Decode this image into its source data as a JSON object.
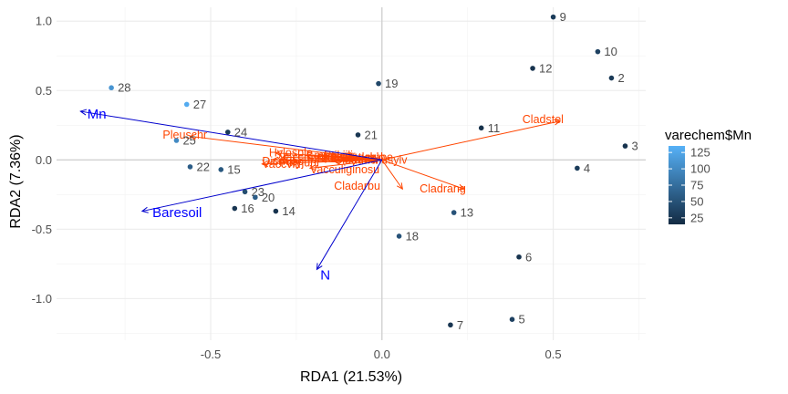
{
  "chart_data": {
    "type": "scatter",
    "xlabel": "RDA1 (21.53%)",
    "ylabel": "RDA2 (7.36%)",
    "xlim": [
      -0.95,
      0.77
    ],
    "ylim": [
      -1.3,
      1.1
    ],
    "xticks": [
      -0.5,
      0.0,
      0.5
    ],
    "xtick_labels": [
      "-0.5",
      "0.0",
      "0.5"
    ],
    "yticks": [
      -1.0,
      -0.5,
      0.0,
      0.5,
      1.0
    ],
    "ytick_labels": [
      "-1.0",
      "-0.5",
      "0.0",
      "0.5",
      "1.0"
    ],
    "grid": true,
    "legend": {
      "title": "varechem$Mn",
      "position": "right",
      "breaks": [
        25,
        50,
        75,
        100,
        125
      ],
      "break_labels": [
        "25",
        "50",
        "75",
        "100",
        "125"
      ],
      "range": [
        15,
        135
      ],
      "low_color": "#132b43",
      "high_color": "#56b1f7"
    },
    "sites": [
      {
        "label": "9",
        "x": 0.5,
        "y": 1.03,
        "mn": 30
      },
      {
        "label": "10",
        "x": 0.63,
        "y": 0.78,
        "mn": 35
      },
      {
        "label": "12",
        "x": 0.44,
        "y": 0.66,
        "mn": 22
      },
      {
        "label": "2",
        "x": 0.67,
        "y": 0.59,
        "mn": 28
      },
      {
        "label": "28",
        "x": -0.79,
        "y": 0.52,
        "mn": 110
      },
      {
        "label": "19",
        "x": -0.01,
        "y": 0.55,
        "mn": 40
      },
      {
        "label": "27",
        "x": -0.57,
        "y": 0.4,
        "mn": 130
      },
      {
        "label": "11",
        "x": 0.29,
        "y": 0.23,
        "mn": 20
      },
      {
        "label": "24",
        "x": -0.45,
        "y": 0.2,
        "mn": 28
      },
      {
        "label": "21",
        "x": -0.07,
        "y": 0.18,
        "mn": 25
      },
      {
        "label": "25",
        "x": -0.6,
        "y": 0.14,
        "mn": 100
      },
      {
        "label": "3",
        "x": 0.71,
        "y": 0.1,
        "mn": 22
      },
      {
        "label": "22",
        "x": -0.56,
        "y": -0.05,
        "mn": 60
      },
      {
        "label": "15",
        "x": -0.47,
        "y": -0.07,
        "mn": 55
      },
      {
        "label": "4",
        "x": 0.57,
        "y": -0.06,
        "mn": 30
      },
      {
        "label": "23",
        "x": -0.4,
        "y": -0.23,
        "mn": 45
      },
      {
        "label": "20",
        "x": -0.37,
        "y": -0.27,
        "mn": 60
      },
      {
        "label": "16",
        "x": -0.43,
        "y": -0.35,
        "mn": 25
      },
      {
        "label": "14",
        "x": -0.31,
        "y": -0.37,
        "mn": 22
      },
      {
        "label": "13",
        "x": 0.21,
        "y": -0.38,
        "mn": 50
      },
      {
        "label": "18",
        "x": 0.05,
        "y": -0.55,
        "mn": 50
      },
      {
        "label": "6",
        "x": 0.4,
        "y": -0.7,
        "mn": 22
      },
      {
        "label": "5",
        "x": 0.38,
        "y": -1.15,
        "mn": 35
      },
      {
        "label": "7",
        "x": 0.2,
        "y": -1.19,
        "mn": 25
      }
    ],
    "species": [
      {
        "label": "Cladstel",
        "x": 0.52,
        "y": 0.28,
        "lx": 0.41,
        "ly": 0.29
      },
      {
        "label": "Cladrang",
        "x": 0.24,
        "y": -0.21,
        "lx": 0.11,
        "ly": -0.21
      },
      {
        "label": "Cladarbu",
        "x": 0.06,
        "y": -0.21,
        "lx": -0.14,
        "ly": -0.19
      },
      {
        "label": "Pleuschr",
        "x": -0.56,
        "y": 0.17,
        "lx": -0.64,
        "ly": 0.18
      },
      {
        "label": "Vaccmyrt",
        "x": -0.29,
        "y": 0.02,
        "lx": -0.3,
        "ly": 0.02
      },
      {
        "label": "Hylosple",
        "x": -0.31,
        "y": 0.05,
        "lx": -0.33,
        "ly": 0.05
      },
      {
        "label": "Dicrfusc",
        "x": -0.32,
        "y": 0.0,
        "lx": -0.35,
        "ly": -0.01
      },
      {
        "label": "Vaccviti",
        "x": -0.35,
        "y": -0.03,
        "lx": -0.35,
        "ly": -0.03
      },
      {
        "label": "Vacculiginosu",
        "x": -0.21,
        "y": -0.06,
        "lx": -0.21,
        "ly": -0.07
      },
      {
        "label": "Empenigr",
        "x": -0.22,
        "y": 0.03,
        "lx": -0.22,
        "ly": 0.03
      },
      {
        "label": "Betupube",
        "x": -0.1,
        "y": 0.02,
        "lx": -0.11,
        "ly": 0.02
      },
      {
        "label": "Cladunci",
        "x": -0.14,
        "y": -0.01,
        "lx": -0.14,
        "ly": 0.0
      },
      {
        "label": "Polyjuni",
        "x": -0.3,
        "y": -0.01,
        "lx": -0.3,
        "ly": -0.02
      },
      {
        "label": "Cladchlo",
        "x": -0.12,
        "y": 0.01,
        "lx": -0.12,
        "ly": 0.02
      },
      {
        "label": "Pinusylv",
        "x": -0.04,
        "y": 0.0,
        "lx": -0.05,
        "ly": 0.0
      },
      {
        "label": "Dicrpoly",
        "x": -0.18,
        "y": 0.0,
        "lx": -0.19,
        "ly": 0.01
      },
      {
        "label": "Ptilcili",
        "x": -0.17,
        "y": 0.03,
        "lx": -0.17,
        "ly": 0.03
      },
      {
        "label": "Barbhatc",
        "x": -0.15,
        "y": 0.01,
        "lx": -0.15,
        "ly": 0.01
      }
    ],
    "env_vectors": [
      {
        "label": "Mn",
        "x": -0.88,
        "y": 0.35,
        "lx": -0.86,
        "ly": 0.33
      },
      {
        "label": "Baresoil",
        "x": -0.7,
        "y": -0.37,
        "lx": -0.67,
        "ly": -0.38
      },
      {
        "label": "N",
        "x": -0.19,
        "y": -0.79,
        "lx": -0.18,
        "ly": -0.83
      }
    ]
  }
}
